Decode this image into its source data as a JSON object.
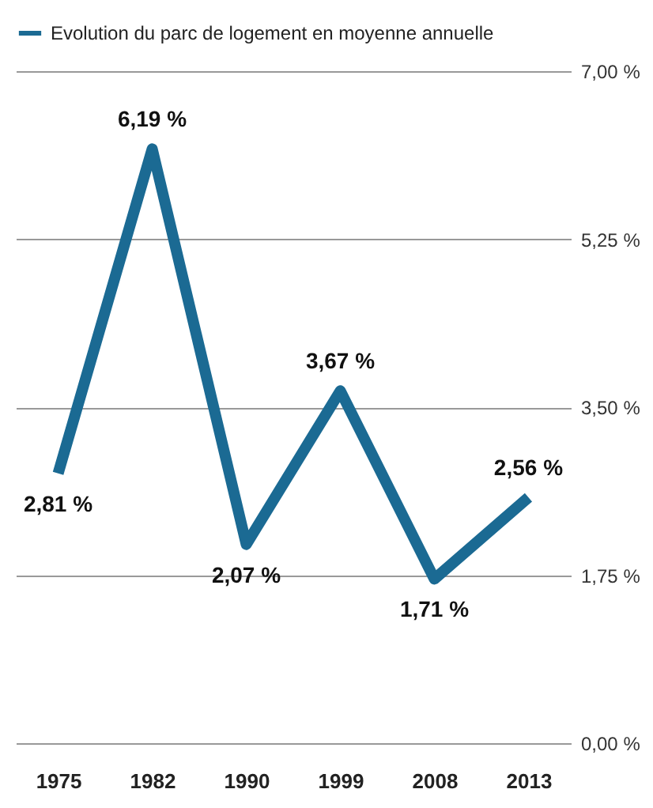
{
  "chart_data": {
    "type": "line",
    "categories": [
      "1975",
      "1982",
      "1990",
      "1999",
      "2008",
      "2013"
    ],
    "series": [
      {
        "name": "Evolution du parc de logement en moyenne annuelle",
        "color": "#1b6a93",
        "values": [
          2.81,
          6.19,
          2.07,
          3.67,
          1.71,
          2.56
        ],
        "value_labels": [
          "2,81 %",
          "6,19 %",
          "2,07 %",
          "3,67 %",
          "1,71 %",
          "2,56 %"
        ]
      }
    ],
    "ylim": [
      0,
      7
    ],
    "yticks": [
      {
        "value": 0,
        "label": "0,00 %"
      },
      {
        "value": 1.75,
        "label": "1,75 %"
      },
      {
        "value": 3.5,
        "label": "3,50 %"
      },
      {
        "value": 5.25,
        "label": "5,25 %"
      },
      {
        "value": 7,
        "label": "7,00 %"
      }
    ],
    "grid": "y",
    "legend": "top",
    "line_style": "solid"
  }
}
